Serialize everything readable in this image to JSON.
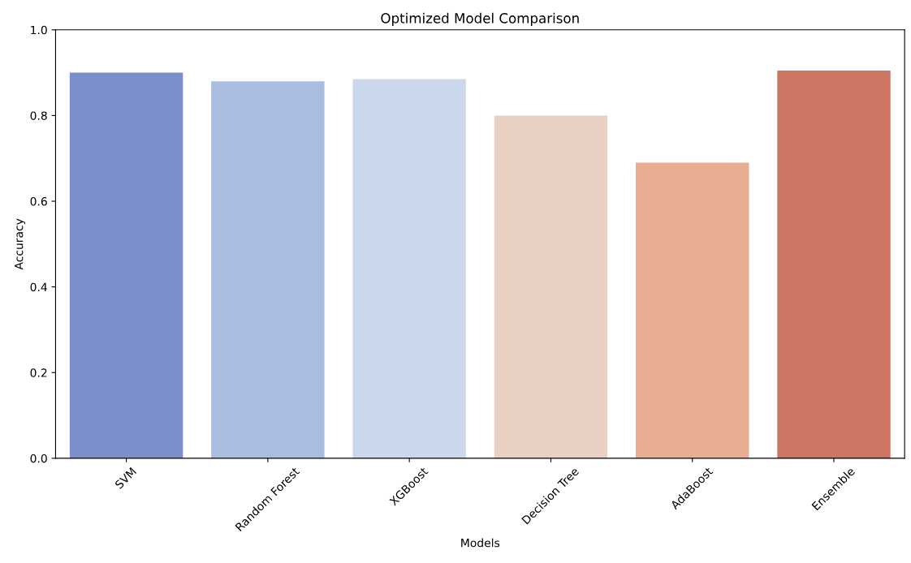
{
  "chart_data": {
    "type": "bar",
    "title": "Optimized Model Comparison",
    "xlabel": "Models",
    "ylabel": "Accuracy",
    "categories": [
      "SVM",
      "Random Forest",
      "XGBoost",
      "Decision Tree",
      "AdaBoost",
      "Ensemble"
    ],
    "values": [
      0.9,
      0.88,
      0.885,
      0.8,
      0.69,
      0.905
    ],
    "colors": [
      "#7b8fca",
      "#a9bde1",
      "#cbd8ec",
      "#e8d0c3",
      "#e9ad91",
      "#cd7563"
    ],
    "ylim": [
      0,
      1.0
    ],
    "yticks": [
      {
        "value": 0,
        "label": "0.0"
      },
      0.2,
      0.4,
      0.6,
      0.8,
      {
        "value": 1,
        "label": "1.0"
      }
    ],
    "grid": false
  }
}
